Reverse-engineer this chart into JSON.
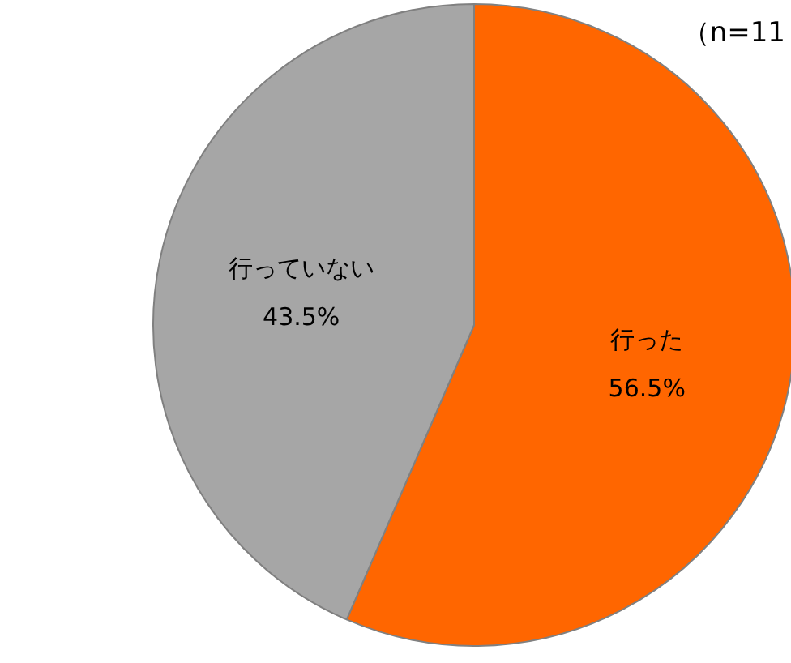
{
  "chart_data": {
    "type": "pie",
    "categories": [
      "行った",
      "行っていない"
    ],
    "values": [
      56.5,
      43.5
    ],
    "colors": [
      "#ff6600",
      "#a6a6a6"
    ],
    "value_labels": [
      "56.5%",
      "43.5%"
    ],
    "annotations": [
      "（n=11"
    ]
  }
}
